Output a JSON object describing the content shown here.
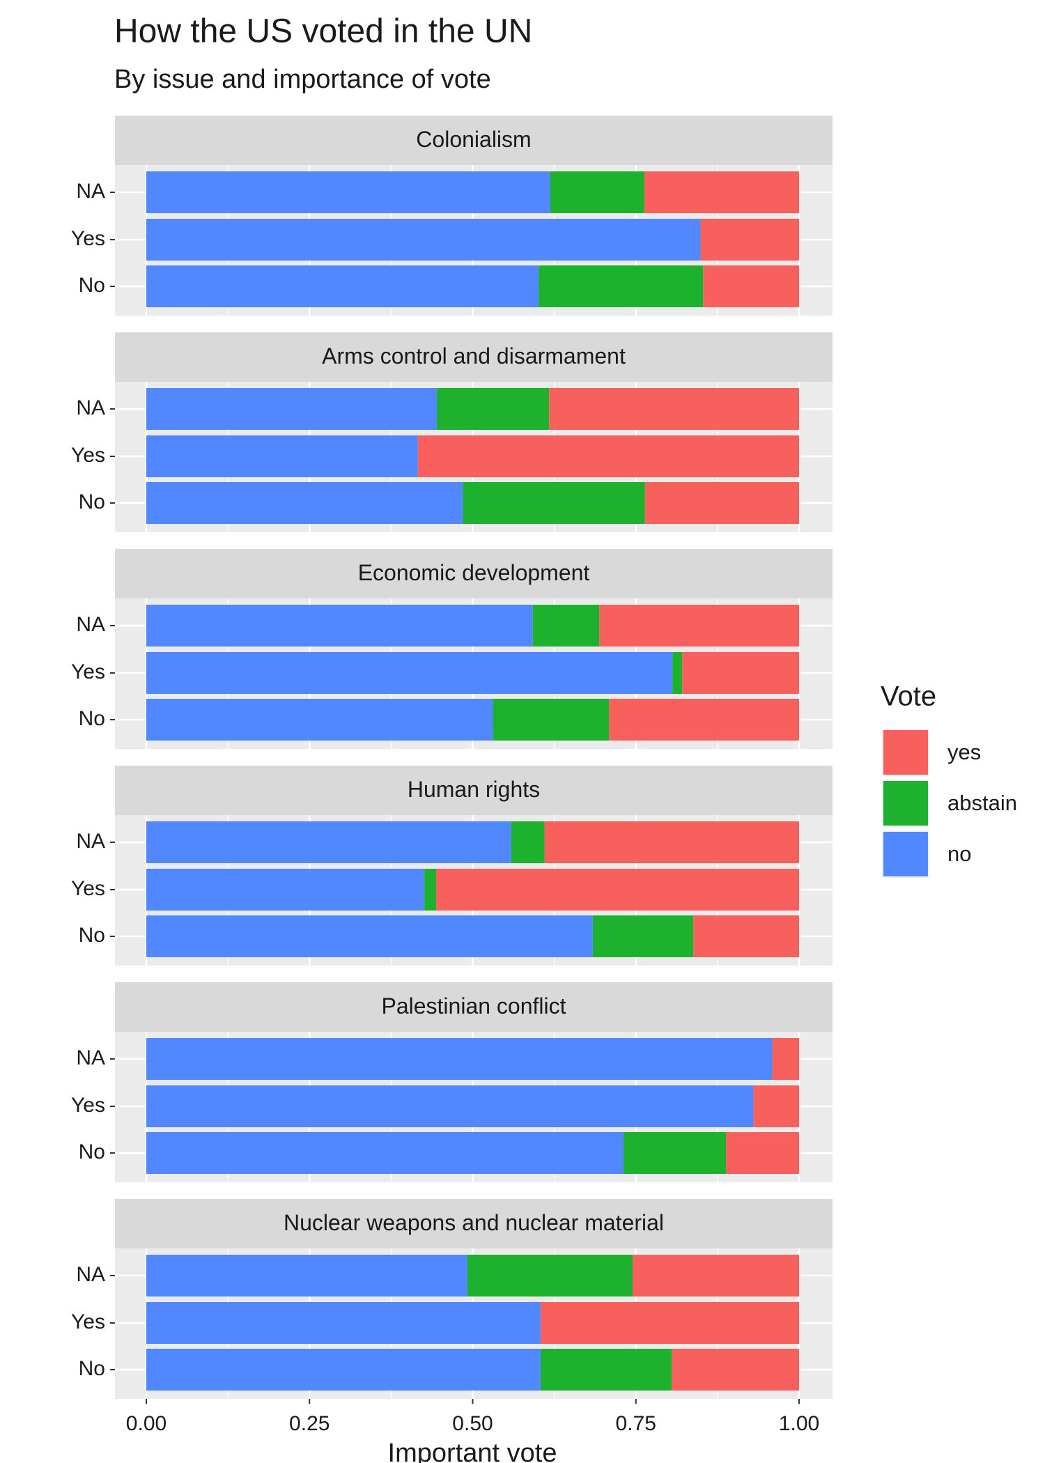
{
  "chart_data": {
    "type": "bar",
    "orientation": "horizontal",
    "stacked": true,
    "title": "How the US voted in the UN",
    "subtitle": "By issue and importance of vote",
    "xlabel": "Important vote",
    "xlim": [
      0,
      1
    ],
    "xticks": [
      {
        "value": 0,
        "label": "0.00"
      },
      {
        "value": 0.25,
        "label": "0.25"
      },
      {
        "value": 0.5,
        "label": "0.50"
      },
      {
        "value": 0.75,
        "label": "0.75"
      },
      {
        "value": 1,
        "label": "1.00"
      }
    ],
    "grid": true,
    "categories": [
      "NA",
      "Yes",
      "No"
    ],
    "legend": {
      "title": "Vote",
      "position": "right"
    },
    "series": [
      {
        "name": "yes",
        "color": "#f8605d"
      },
      {
        "name": "abstain",
        "color": "#1db12d"
      },
      {
        "name": "no",
        "color": "#5188ff"
      }
    ],
    "facets": [
      {
        "title": "Colonialism",
        "values": [
          [
            0.237,
            0.151,
            0.147
          ],
          [
            0.144,
            0,
            0.252
          ],
          [
            0.619,
            0.849,
            0.601
          ]
        ]
      },
      {
        "title": "Arms control and disarmament",
        "values": [
          [
            0.383,
            0.584,
            0.236
          ],
          [
            0.172,
            0,
            0.279
          ],
          [
            0.445,
            0.416,
            0.485
          ]
        ]
      },
      {
        "title": "Economic development",
        "values": [
          [
            0.306,
            0.179,
            0.291
          ],
          [
            0.102,
            0.015,
            0.178
          ],
          [
            0.592,
            0.806,
            0.531
          ]
        ]
      },
      {
        "title": "Human rights",
        "values": [
          [
            0.39,
            0.556,
            0.162
          ],
          [
            0.051,
            0.018,
            0.154
          ],
          [
            0.559,
            0.426,
            0.684
          ]
        ]
      },
      {
        "title": "Palestinian conflict",
        "values": [
          [
            0.041,
            0.07,
            0.112
          ],
          [
            0,
            0,
            0.157
          ],
          [
            0.959,
            0.93,
            0.731
          ]
        ]
      },
      {
        "title": "Nuclear weapons and nuclear material",
        "values": [
          [
            0.255,
            0.396,
            0.195
          ],
          [
            0.253,
            0,
            0.201
          ],
          [
            0.492,
            0.604,
            0.604
          ]
        ]
      }
    ]
  }
}
